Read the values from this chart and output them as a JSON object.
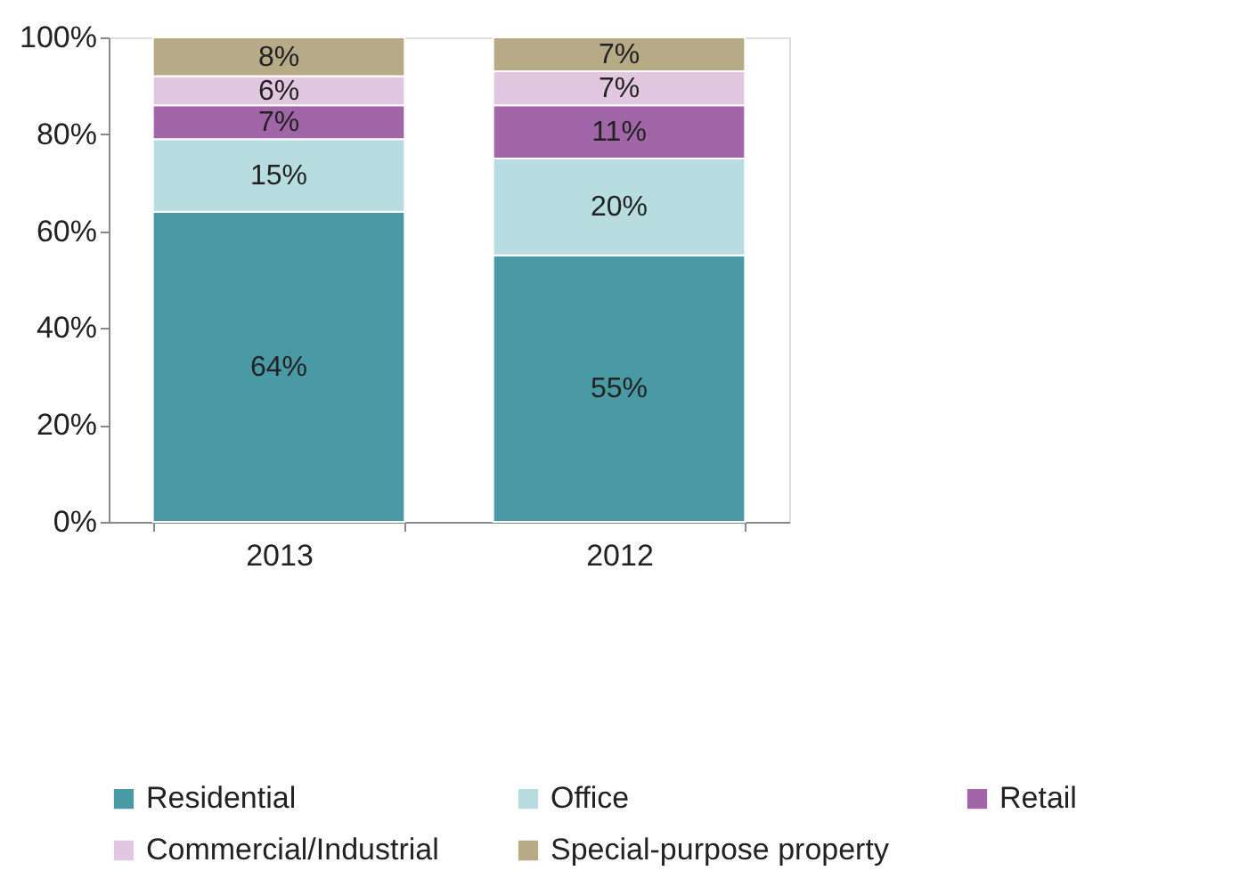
{
  "chart_data": {
    "type": "bar",
    "stacked": true,
    "categories": [
      "2013",
      "2012"
    ],
    "series": [
      {
        "name": "Residential",
        "color": "#4a9aa5",
        "values": [
          64,
          55
        ],
        "value_labels": [
          "64%",
          "55%"
        ]
      },
      {
        "name": "Office",
        "color": "#b8dde0",
        "values": [
          15,
          20
        ],
        "value_labels": [
          "15%",
          "20%"
        ]
      },
      {
        "name": "Retail",
        "color": "#a066a8",
        "values": [
          7,
          11
        ],
        "value_labels": [
          "7%",
          "11%"
        ]
      },
      {
        "name": "Commercial/Industrial",
        "color": "#e2c7e1",
        "values": [
          6,
          7
        ],
        "value_labels": [
          "6%",
          "7%"
        ]
      },
      {
        "name": "Special-purpose property",
        "color": "#b6ab86",
        "values": [
          8,
          7
        ],
        "value_labels": [
          "8%",
          "7%"
        ]
      }
    ],
    "ylim": [
      0,
      100
    ],
    "yticks": [
      {
        "value": 0,
        "label": "0%"
      },
      {
        "value": 20,
        "label": "20%"
      },
      {
        "value": 40,
        "label": "40%"
      },
      {
        "value": 60,
        "label": "60%"
      },
      {
        "value": 80,
        "label": "80%"
      },
      {
        "value": 100,
        "label": "100%"
      }
    ],
    "grid": false,
    "legend": "bottom"
  }
}
